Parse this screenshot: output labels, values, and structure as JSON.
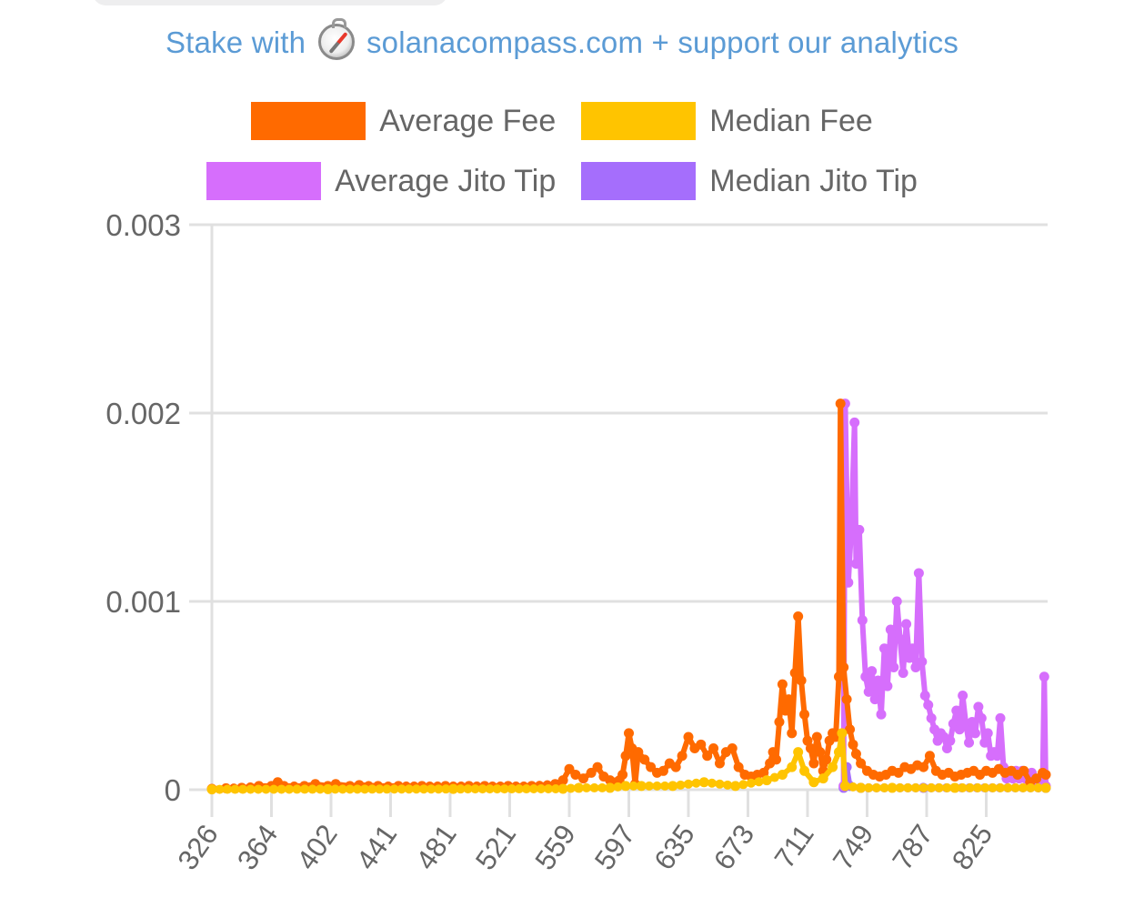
{
  "header": {
    "stake_prefix": "Stake with",
    "stake_suffix": "solanacompass.com + support our analytics",
    "link_color": "#5b9bd5"
  },
  "legend": [
    {
      "label": "Average Fee",
      "color": "#ff6a00"
    },
    {
      "label": "Median Fee",
      "color": "#ffc400"
    },
    {
      "label": "Average Jito Tip",
      "color": "#d66efc"
    },
    {
      "label": "Median Jito Tip",
      "color": "#a56efc"
    }
  ],
  "chart_data": {
    "type": "line",
    "title": "",
    "xlabel": "",
    "ylabel": "",
    "ylim": [
      0,
      0.003
    ],
    "xlim": [
      326,
      858
    ],
    "y_ticks": [
      "0",
      "0.001",
      "0.002",
      "0.003"
    ],
    "x_ticks": [
      "326",
      "364",
      "402",
      "441",
      "481",
      "521",
      "559",
      "597",
      "635",
      "673",
      "711",
      "749",
      "787",
      "825"
    ],
    "grid": true,
    "legend_position": "top",
    "series": [
      {
        "name": "Average Fee",
        "color": "#ff6a00",
        "points": [
          [
            326,
            5e-06
          ],
          [
            335,
            8e-06
          ],
          [
            345,
            1e-05
          ],
          [
            356,
            2e-05
          ],
          [
            364,
            2e-05
          ],
          [
            368,
            4e-05
          ],
          [
            372,
            2e-05
          ],
          [
            385,
            2e-05
          ],
          [
            392,
            3e-05
          ],
          [
            400,
            2e-05
          ],
          [
            405,
            3e-05
          ],
          [
            414,
            2e-05
          ],
          [
            420,
            2.5e-05
          ],
          [
            432,
            2e-05
          ],
          [
            445,
            2e-05
          ],
          [
            460,
            2e-05
          ],
          [
            475,
            2e-05
          ],
          [
            490,
            2e-05
          ],
          [
            500,
            2e-05
          ],
          [
            515,
            2e-05
          ],
          [
            530,
            2e-05
          ],
          [
            545,
            3e-05
          ],
          [
            550,
            5e-05
          ],
          [
            554,
            0.00011
          ],
          [
            558,
            8e-05
          ],
          [
            563,
            6e-05
          ],
          [
            568,
            9e-05
          ],
          [
            572,
            0.00012
          ],
          [
            576,
            7e-05
          ],
          [
            580,
            5e-05
          ],
          [
            584,
            4e-05
          ],
          [
            586,
            5e-05
          ],
          [
            588,
            8e-05
          ],
          [
            590,
            0.00018
          ],
          [
            592,
            0.0003
          ],
          [
            594,
            0.00022
          ],
          [
            596,
            3e-05
          ],
          [
            598,
            0.0002
          ],
          [
            602,
            0.00016
          ],
          [
            606,
            0.00012
          ],
          [
            610,
            9e-05
          ],
          [
            614,
            0.0001
          ],
          [
            618,
            0.00014
          ],
          [
            622,
            0.00012
          ],
          [
            626,
            0.00018
          ],
          [
            630,
            0.00028
          ],
          [
            634,
            0.00022
          ],
          [
            638,
            0.00024
          ],
          [
            642,
            0.00018
          ],
          [
            646,
            0.00022
          ],
          [
            650,
            0.00014
          ],
          [
            654,
            0.0002
          ],
          [
            658,
            0.00022
          ],
          [
            662,
            0.00012
          ],
          [
            666,
            8e-05
          ],
          [
            670,
            7e-05
          ],
          [
            674,
            8e-05
          ],
          [
            678,
            9e-05
          ],
          [
            682,
            0.00014
          ],
          [
            684,
            0.0002
          ],
          [
            686,
            0.00016
          ],
          [
            688,
            0.00036
          ],
          [
            690,
            0.00056
          ],
          [
            692,
            0.00042
          ],
          [
            694,
            0.00048
          ],
          [
            696,
            0.0003
          ],
          [
            698,
            0.00062
          ],
          [
            700,
            0.00092
          ],
          [
            702,
            0.00058
          ],
          [
            704,
            0.0004
          ],
          [
            706,
            0.00026
          ],
          [
            708,
            0.00022
          ],
          [
            710,
            0.00014
          ],
          [
            712,
            0.00028
          ],
          [
            714,
            0.0002
          ],
          [
            716,
            0.0001
          ],
          [
            718,
            0.00016
          ],
          [
            720,
            0.00026
          ],
          [
            722,
            0.0003
          ],
          [
            724,
            0.00028
          ],
          [
            726,
            0.0006
          ],
          [
            727,
            0.00205
          ],
          [
            729,
            0.00065
          ],
          [
            731,
            0.00048
          ],
          [
            733,
            0.00032
          ],
          [
            735,
            0.00024
          ],
          [
            737,
            0.00019
          ],
          [
            740,
            0.00014
          ],
          [
            744,
            0.0001
          ],
          [
            748,
            8e-05
          ],
          [
            752,
            7e-05
          ],
          [
            756,
            8e-05
          ],
          [
            760,
            0.0001
          ],
          [
            764,
            9e-05
          ],
          [
            768,
            0.00012
          ],
          [
            772,
            0.00011
          ],
          [
            776,
            0.00013
          ],
          [
            780,
            0.00012
          ],
          [
            784,
            0.00018
          ],
          [
            788,
            0.0001
          ],
          [
            792,
            8e-05
          ],
          [
            796,
            9e-05
          ],
          [
            800,
            7e-05
          ],
          [
            804,
            8e-05
          ],
          [
            808,
            9e-05
          ],
          [
            812,
            0.0001
          ],
          [
            816,
            8e-05
          ],
          [
            820,
            0.0001
          ],
          [
            824,
            9e-05
          ],
          [
            828,
            0.00011
          ],
          [
            832,
            9e-05
          ],
          [
            836,
            0.0001
          ],
          [
            840,
            8e-05
          ],
          [
            844,
            0.0001
          ],
          [
            848,
            4e-05
          ],
          [
            852,
            6e-05
          ],
          [
            856,
            9e-05
          ],
          [
            858,
            8e-05
          ]
        ]
      },
      {
        "name": "Median Fee",
        "color": "#ffc400",
        "points": [
          [
            326,
            2e-06
          ],
          [
            400,
            3e-06
          ],
          [
            480,
            4e-06
          ],
          [
            550,
            5e-06
          ],
          [
            560,
            1e-05
          ],
          [
            580,
            1e-05
          ],
          [
            590,
            2e-05
          ],
          [
            600,
            2e-05
          ],
          [
            620,
            2e-05
          ],
          [
            640,
            4e-05
          ],
          [
            660,
            2e-05
          ],
          [
            680,
            5e-05
          ],
          [
            690,
            8e-05
          ],
          [
            696,
            0.00012
          ],
          [
            700,
            0.0002
          ],
          [
            704,
            0.0001
          ],
          [
            710,
            4e-05
          ],
          [
            716,
            6e-05
          ],
          [
            722,
            0.00012
          ],
          [
            726,
            0.0002
          ],
          [
            728,
            0.0003
          ],
          [
            730,
            2e-05
          ],
          [
            740,
            1e-05
          ],
          [
            760,
            1e-05
          ],
          [
            800,
            1e-05
          ],
          [
            858,
            1e-05
          ]
        ]
      },
      {
        "name": "Average Jito Tip",
        "color": "#d66efc",
        "points": [
          [
            729,
            2e-05
          ],
          [
            730,
            0.00205
          ],
          [
            732,
            0.0011
          ],
          [
            734,
            0.0014
          ],
          [
            736,
            0.00195
          ],
          [
            737,
            0.0012
          ],
          [
            739,
            0.00138
          ],
          [
            741,
            0.0009
          ],
          [
            743,
            0.0006
          ],
          [
            745,
            0.00052
          ],
          [
            747,
            0.00063
          ],
          [
            749,
            0.00048
          ],
          [
            751,
            0.00058
          ],
          [
            753,
            0.0004
          ],
          [
            755,
            0.00075
          ],
          [
            757,
            0.00055
          ],
          [
            759,
            0.00085
          ],
          [
            761,
            0.00065
          ],
          [
            763,
            0.001
          ],
          [
            765,
            0.0008
          ],
          [
            767,
            0.00062
          ],
          [
            769,
            0.00088
          ],
          [
            771,
            0.0007
          ],
          [
            773,
            0.00075
          ],
          [
            775,
            0.00065
          ],
          [
            777,
            0.00115
          ],
          [
            779,
            0.00068
          ],
          [
            781,
            0.0005
          ],
          [
            783,
            0.00045
          ],
          [
            785,
            0.00038
          ],
          [
            787,
            0.00032
          ],
          [
            789,
            0.00026
          ],
          [
            791,
            0.0003
          ],
          [
            793,
            0.00028
          ],
          [
            795,
            0.00022
          ],
          [
            797,
            0.00026
          ],
          [
            799,
            0.00035
          ],
          [
            801,
            0.00042
          ],
          [
            803,
            0.00032
          ],
          [
            805,
            0.0005
          ],
          [
            807,
            0.00035
          ],
          [
            809,
            0.00025
          ],
          [
            811,
            0.00036
          ],
          [
            813,
            0.0003
          ],
          [
            815,
            0.00044
          ],
          [
            817,
            0.00038
          ],
          [
            819,
            0.00025
          ],
          [
            821,
            0.0003
          ],
          [
            823,
            0.00018
          ],
          [
            825,
            0.0002
          ],
          [
            827,
            0.00018
          ],
          [
            829,
            0.00038
          ],
          [
            831,
            0.00012
          ],
          [
            833,
            6e-05
          ],
          [
            835,
            8e-05
          ],
          [
            837,
            6e-05
          ],
          [
            839,
            0.0001
          ],
          [
            841,
            6e-05
          ],
          [
            843,
            0.0001
          ],
          [
            845,
            6e-05
          ],
          [
            847,
            8e-05
          ],
          [
            849,
            9e-05
          ],
          [
            853,
            4e-05
          ],
          [
            856,
            5e-05
          ],
          [
            857,
            0.0006
          ],
          [
            858,
            2e-05
          ]
        ]
      },
      {
        "name": "Median Jito Tip",
        "color": "#a56efc",
        "points": [
          [
            729,
            1e-05
          ],
          [
            731,
            0.00012
          ],
          [
            733,
            2e-05
          ],
          [
            740,
            1e-05
          ],
          [
            780,
            1e-05
          ],
          [
            858,
            1e-05
          ]
        ]
      }
    ]
  }
}
